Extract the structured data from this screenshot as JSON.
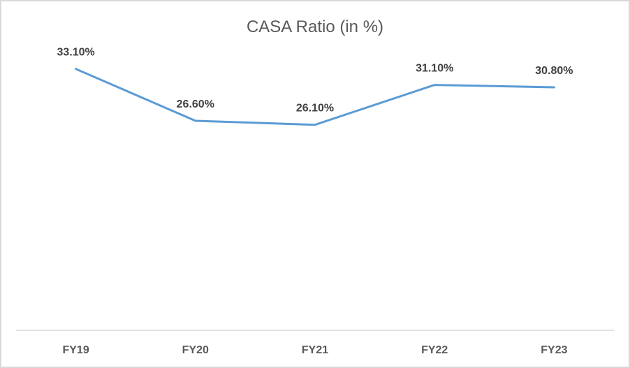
{
  "chart_data": {
    "type": "line",
    "title": "CASA Ratio (in %)",
    "categories": [
      "FY19",
      "FY20",
      "FY21",
      "FY22",
      "FY23"
    ],
    "series": [
      {
        "values": [
          33.1,
          26.6,
          26.1,
          31.1,
          30.8
        ],
        "color": "#5b9bd5"
      }
    ],
    "data_labels": [
      "33.10%",
      "26.60%",
      "26.10%",
      "31.10%",
      "30.80%"
    ],
    "xlabel": "",
    "ylabel": "",
    "ylim": [
      0,
      35
    ],
    "grid": false,
    "legend": "none"
  }
}
